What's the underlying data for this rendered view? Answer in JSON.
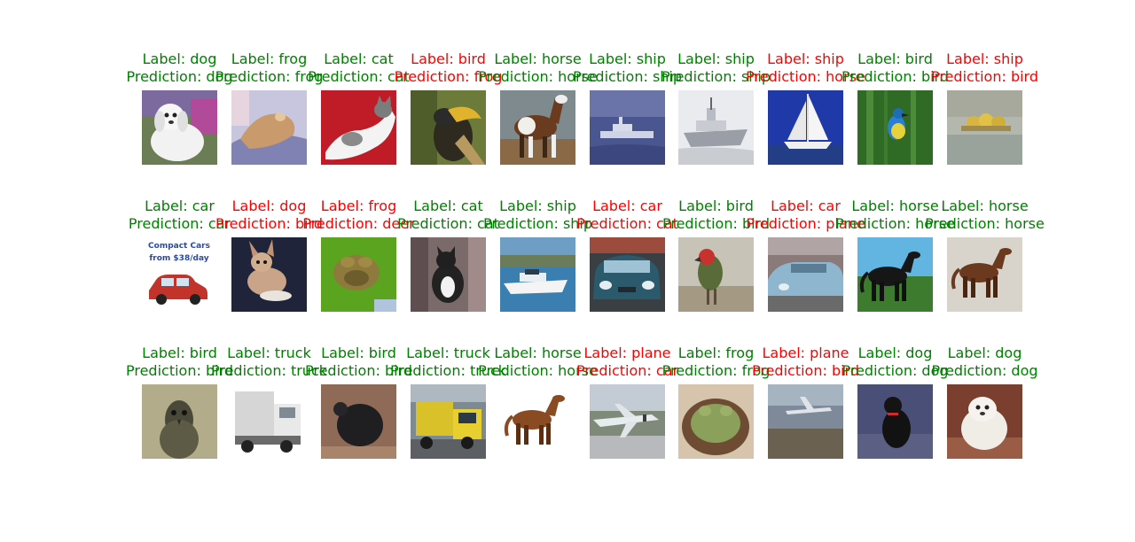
{
  "colors": {
    "correct": "#008000",
    "incorrect": "#ff0000",
    "background": "#ffffff"
  },
  "grid": {
    "rows": 3,
    "cols": 10
  },
  "samples": [
    {
      "label": "Label: dog",
      "prediction": "Prediction: dog",
      "correct": true,
      "scene": "white-dog"
    },
    {
      "label": "Label: frog",
      "prediction": "Prediction: frog",
      "correct": true,
      "scene": "frog-on-rock"
    },
    {
      "label": "Label: cat",
      "prediction": "Prediction: cat",
      "correct": true,
      "scene": "cat-on-red"
    },
    {
      "label": "Label: bird",
      "prediction": "Prediction: frog",
      "correct": false,
      "scene": "hornbill"
    },
    {
      "label": "Label: horse",
      "prediction": "Prediction: horse",
      "correct": true,
      "scene": "brown-white-horse"
    },
    {
      "label": "Label: ship",
      "prediction": "Prediction: ship",
      "correct": true,
      "scene": "ship-on-water"
    },
    {
      "label": "Label: ship",
      "prediction": "Prediction: ship",
      "correct": true,
      "scene": "grey-boat"
    },
    {
      "label": "Label: ship",
      "prediction": "Prediction: horse",
      "correct": false,
      "scene": "sailboat"
    },
    {
      "label": "Label: bird",
      "prediction": "Prediction: bird",
      "correct": true,
      "scene": "bird-in-grass"
    },
    {
      "label": "Label: ship",
      "prediction": "Prediction: bird",
      "correct": false,
      "scene": "yellow-boat"
    },
    {
      "label": "Label: car",
      "prediction": "Prediction: car",
      "correct": true,
      "scene": "car-ad",
      "ad_line1": "Compact Cars",
      "ad_line2": "from $38/day"
    },
    {
      "label": "Label: dog",
      "prediction": "Prediction: bird",
      "correct": false,
      "scene": "dark-dog"
    },
    {
      "label": "Label: frog",
      "prediction": "Prediction: deer",
      "correct": false,
      "scene": "frog-on-green"
    },
    {
      "label": "Label: cat",
      "prediction": "Prediction: cat",
      "correct": true,
      "scene": "black-white-cat"
    },
    {
      "label": "Label: ship",
      "prediction": "Prediction: ship",
      "correct": true,
      "scene": "white-motorboat"
    },
    {
      "label": "Label: car",
      "prediction": "Prediction: cat",
      "correct": false,
      "scene": "car-front"
    },
    {
      "label": "Label: bird",
      "prediction": "Prediction: bird",
      "correct": true,
      "scene": "parrot"
    },
    {
      "label": "Label: car",
      "prediction": "Prediction: plane",
      "correct": false,
      "scene": "blue-car"
    },
    {
      "label": "Label: horse",
      "prediction": "Prediction: horse",
      "correct": true,
      "scene": "black-horse"
    },
    {
      "label": "Label: horse",
      "prediction": "Prediction: horse",
      "correct": true,
      "scene": "brown-horse"
    },
    {
      "label": "Label: bird",
      "prediction": "Prediction: bird",
      "correct": true,
      "scene": "emu"
    },
    {
      "label": "Label: truck",
      "prediction": "Prediction: truck",
      "correct": true,
      "scene": "white-truck"
    },
    {
      "label": "Label: bird",
      "prediction": "Prediction: bird",
      "correct": true,
      "scene": "dark-bird"
    },
    {
      "label": "Label: truck",
      "prediction": "Prediction: truck",
      "correct": true,
      "scene": "yellow-truck"
    },
    {
      "label": "Label: horse",
      "prediction": "Prediction: horse",
      "correct": true,
      "scene": "horse-on-white"
    },
    {
      "label": "Label: plane",
      "prediction": "Prediction: car",
      "correct": false,
      "scene": "plane-on-ground"
    },
    {
      "label": "Label: frog",
      "prediction": "Prediction: frog",
      "correct": true,
      "scene": "frog-in-bowl"
    },
    {
      "label": "Label: plane",
      "prediction": "Prediction: bird",
      "correct": false,
      "scene": "aerial-plane"
    },
    {
      "label": "Label: dog",
      "prediction": "Prediction: dog",
      "correct": true,
      "scene": "black-dog"
    },
    {
      "label": "Label: dog",
      "prediction": "Prediction: dog",
      "correct": true,
      "scene": "fluffy-dog"
    }
  ]
}
